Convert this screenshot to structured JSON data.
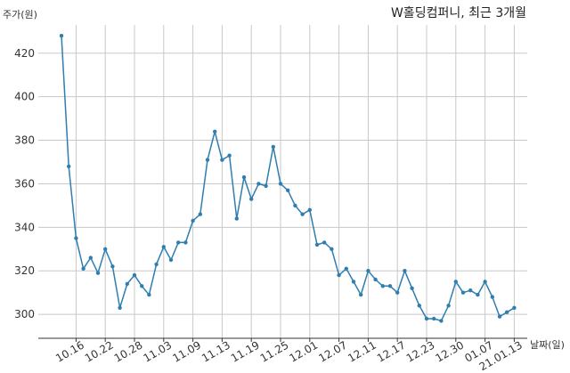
{
  "chart_data": {
    "type": "line",
    "title": "W홀딩컴퍼니, 최근 3개월",
    "ylabel": "주가(원)",
    "xlabel": "날짜(일)",
    "ylim": [
      289,
      433
    ],
    "yticks": [
      300,
      320,
      340,
      360,
      380,
      400,
      420
    ],
    "grid": true,
    "line_color": "#2e7eb0",
    "x_tick_labels": [
      "10.16",
      "10.22",
      "10.28",
      "11.03",
      "11.09",
      "11.13",
      "11.19",
      "11.25",
      "12.01",
      "12.07",
      "12.11",
      "12.17",
      "12.23",
      "12.30",
      "01.07",
      "21.01.13"
    ],
    "x_tick_positions": [
      2,
      6,
      10,
      14,
      18,
      22,
      26,
      30,
      34,
      38,
      42,
      46,
      50,
      54,
      58,
      62
    ],
    "series": [
      {
        "values": [
          428,
          368,
          335,
          321,
          326,
          319,
          330,
          322,
          303,
          314,
          318,
          313,
          309,
          323,
          331,
          325,
          333,
          333,
          343,
          346,
          371,
          384,
          371,
          373,
          344,
          363,
          353,
          360,
          359,
          377,
          360,
          357,
          350,
          346,
          348,
          332,
          333,
          330,
          318,
          321,
          315,
          309,
          320,
          316,
          313,
          313,
          310,
          320,
          312,
          304,
          298,
          298,
          297,
          304,
          315,
          310,
          311,
          309,
          315,
          308,
          299,
          301,
          303
        ]
      }
    ]
  }
}
